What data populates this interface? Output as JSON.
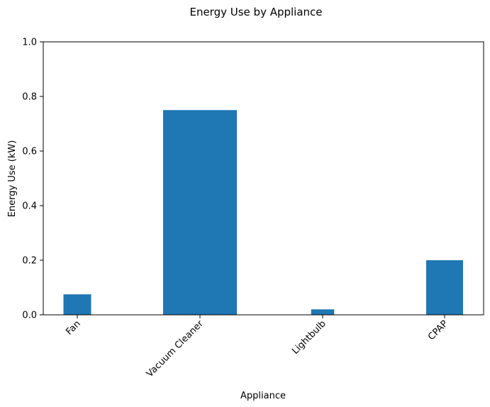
{
  "chart_data": {
    "type": "bar",
    "title": "Energy Use by Appliance",
    "xlabel": "Appliance",
    "ylabel": "Energy Use (kW)",
    "categories": [
      "Fan",
      "Vacuum Cleaner",
      "Lightbulb",
      "CPAP"
    ],
    "values": [
      0.075,
      0.75,
      0.02,
      0.2
    ],
    "bar_width_fraction": [
      0.6,
      1.6,
      0.5,
      0.8
    ],
    "ylim": [
      0,
      1.0
    ],
    "yticks": [
      "0.0",
      "0.2",
      "0.4",
      "0.6",
      "0.8",
      "1.0"
    ],
    "ytick_values": [
      0,
      0.2,
      0.4,
      0.6,
      0.8,
      1.0
    ],
    "grid": false,
    "legend": "none",
    "bar_color": "#1f77b4"
  }
}
